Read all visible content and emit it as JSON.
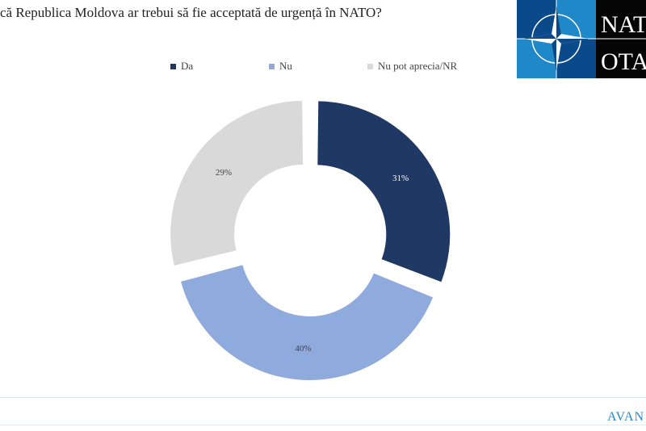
{
  "header": {
    "title": "că Republica Moldova ar trebui să fie acceptată de urgență în NATO?"
  },
  "logo": {
    "top_text": "NAT",
    "bottom_text": "OTA"
  },
  "footer": {
    "brand": "AVAN"
  },
  "chart_data": {
    "type": "pie",
    "donut": true,
    "title": "că Republica Moldova ar trebui să fie acceptată de urgență în NATO?",
    "legend_position": "top",
    "categories": [
      "Da",
      "Nu",
      "Nu pot aprecia/NR"
    ],
    "values": [
      31,
      40,
      29
    ],
    "labels": [
      "31%",
      "40%",
      "29%"
    ],
    "colors": [
      "#1f3864",
      "#8faadc",
      "#d9d9d9"
    ]
  }
}
